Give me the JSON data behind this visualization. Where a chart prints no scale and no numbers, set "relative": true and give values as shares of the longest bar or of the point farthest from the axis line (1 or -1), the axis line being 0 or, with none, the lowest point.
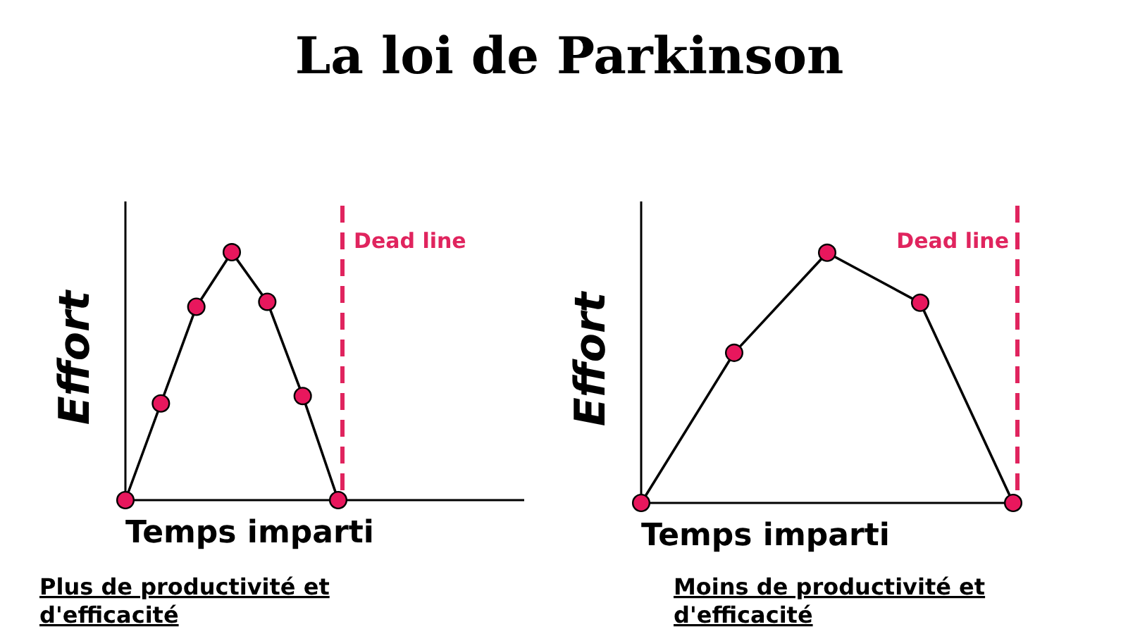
{
  "chart_data": [
    {
      "type": "line",
      "title": "La loi de Parkinson",
      "xlabel": "Temps imparti",
      "ylabel": "Effort",
      "relative": true,
      "marker": "circle",
      "line_style": "solid",
      "categories": [
        null,
        null,
        null,
        null,
        null,
        null,
        null
      ],
      "series": [
        {
          "color": "#000000",
          "values": [
            0,
            0.39,
            0.78,
            1,
            0.8,
            0.42,
            0
          ]
        }
      ],
      "ref_lines": [
        {
          "axis": "x",
          "label": "Dead line",
          "color": "#e0245e",
          "line_style": "dashed"
        }
      ],
      "annotations": [
        "Plus de productivité et d'efficacité"
      ]
    },
    {
      "type": "line",
      "xlabel": "Temps imparti",
      "ylabel": "Effort",
      "relative": true,
      "marker": "circle",
      "line_style": "solid",
      "categories": [
        null,
        null,
        null,
        null,
        null
      ],
      "series": [
        {
          "color": "#000000",
          "values": [
            0,
            0.6,
            1,
            0.8,
            0
          ]
        }
      ],
      "ref_lines": [
        {
          "axis": "x",
          "label": "Dead line",
          "color": "#e0245e",
          "line_style": "dashed"
        }
      ],
      "annotations": [
        "Moins de productivité et d'efficacité"
      ]
    }
  ]
}
